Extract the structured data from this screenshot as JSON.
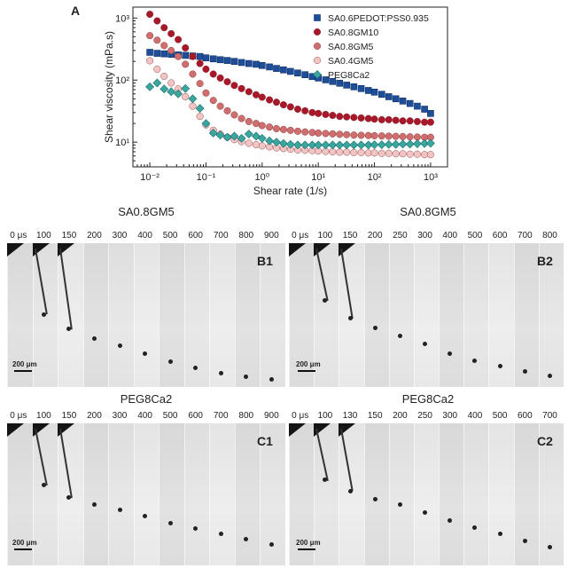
{
  "panel_a": {
    "label": "A"
  },
  "chart_data": {
    "type": "scatter",
    "xlabel": "Shear rate (1/s)",
    "ylabel": "Shear viscosity (mPa.s)",
    "xscale": "log",
    "yscale": "log",
    "xlim": [
      0.005,
      2000
    ],
    "ylim": [
      4,
      1500
    ],
    "x_ticks": [
      "10⁻²",
      "10⁻¹",
      "10⁰",
      "10¹",
      "10²",
      "10³"
    ],
    "y_ticks": [
      "10¹",
      "10²",
      "10³"
    ],
    "legend_position": "top-right",
    "x": [
      0.01,
      0.0135,
      0.018,
      0.024,
      0.032,
      0.043,
      0.058,
      0.078,
      0.1,
      0.135,
      0.18,
      0.24,
      0.32,
      0.43,
      0.58,
      0.78,
      1,
      1.35,
      1.8,
      2.4,
      3.2,
      4.3,
      5.8,
      7.8,
      10,
      13.5,
      18,
      24,
      32,
      43,
      58,
      78,
      100,
      135,
      180,
      240,
      320,
      430,
      580,
      780,
      1000
    ],
    "series": [
      {
        "name": "SA0.6PEDOT:PSS0.935",
        "marker": "square",
        "color": "#1f4e99",
        "values": [
          280,
          270,
          265,
          260,
          255,
          250,
          245,
          240,
          228,
          220,
          213,
          207,
          200,
          192,
          185,
          180,
          172,
          163,
          154,
          146,
          138,
          130,
          122,
          114,
          108,
          101,
          95,
          89,
          83,
          78,
          73,
          68,
          64,
          59,
          54,
          50,
          46,
          42,
          38,
          34,
          29
        ]
      },
      {
        "name": "SA0.8GM10",
        "marker": "circle",
        "color": "#a8182a",
        "values": [
          1150,
          900,
          700,
          560,
          450,
          330,
          240,
          185,
          150,
          125,
          108,
          94,
          82,
          73,
          65,
          58,
          53,
          48,
          44,
          40,
          37,
          34,
          32,
          30,
          29,
          28,
          27,
          26,
          25.5,
          25,
          24.5,
          24,
          23.5,
          23,
          23,
          22.5,
          22,
          22,
          21.5,
          21,
          21
        ]
      },
      {
        "name": "SA0.8GM5",
        "marker": "circle",
        "color": "#cf6e6e",
        "values": [
          520,
          440,
          360,
          300,
          240,
          180,
          125,
          88,
          62,
          47,
          38,
          32,
          27.5,
          24,
          21.5,
          20,
          18.5,
          17.5,
          16.5,
          16,
          15.5,
          15,
          14.6,
          14.3,
          14,
          13.8,
          13.6,
          13.4,
          13.2,
          13,
          12.9,
          12.8,
          12.7,
          12.6,
          12.5,
          12.4,
          12.3,
          12.2,
          12.1,
          12,
          12
        ]
      },
      {
        "name": "SA0.4GM5",
        "marker": "circle",
        "color": "#f3c4c4",
        "values": [
          205,
          150,
          115,
          90,
          72,
          54,
          38,
          26,
          19,
          15.5,
          13.5,
          12,
          11,
          10.2,
          9.6,
          9.1,
          8.7,
          8.4,
          8.1,
          7.9,
          7.7,
          7.5,
          7.4,
          7.3,
          7.2,
          7.1,
          7,
          6.9,
          6.9,
          6.8,
          6.8,
          6.7,
          6.7,
          6.6,
          6.6,
          6.5,
          6.5,
          6.4,
          6.4,
          6.3,
          6.3
        ]
      },
      {
        "name": "PEG8Ca2",
        "marker": "diamond",
        "color": "#3aa6a0",
        "values": [
          78,
          90,
          72,
          65,
          60,
          73,
          50,
          35,
          20,
          14,
          13,
          12,
          12.5,
          11.5,
          13.5,
          12.5,
          11.5,
          10.5,
          10,
          9.5,
          9.2,
          9,
          9,
          9,
          9,
          9,
          9,
          9,
          9,
          9,
          9,
          9,
          9.1,
          9.1,
          9.2,
          9.2,
          9.3,
          9.3,
          9.4,
          9.5,
          9.6
        ]
      }
    ]
  },
  "sequences": {
    "scale_bar": "200 μm",
    "b1": {
      "title": "SA0.8GM5",
      "label": "B1",
      "times": [
        "0 μs",
        "100",
        "150",
        "200",
        "300",
        "400",
        "500",
        "600",
        "700",
        "800",
        "900"
      ],
      "drop_y": [
        0.52,
        0.63,
        0.7,
        0.75,
        0.81,
        0.87,
        0.91,
        0.95,
        0.98,
        1.0
      ]
    },
    "b2": {
      "title": "SA0.8GM5",
      "label": "B2",
      "times": [
        "0 μs",
        "100",
        "150",
        "200",
        "250",
        "300",
        "400",
        "500",
        "600",
        "700",
        "800"
      ],
      "drop_y": [
        0.42,
        0.55,
        0.62,
        0.68,
        0.74,
        0.81,
        0.86,
        0.9,
        0.94,
        0.97
      ]
    },
    "c1": {
      "title": "PEG8Ca2",
      "label": "C1",
      "times": [
        "0 μs",
        "100",
        "150",
        "200",
        "300",
        "400",
        "500",
        "600",
        "700",
        "800",
        "900"
      ],
      "drop_y": [
        0.46,
        0.55,
        0.6,
        0.64,
        0.69,
        0.74,
        0.78,
        0.82,
        0.86,
        0.9
      ]
    },
    "c2": {
      "title": "PEG8Ca2",
      "label": "C2",
      "times": [
        "0 μs",
        "100",
        "130",
        "150",
        "200",
        "250",
        "300",
        "400",
        "500",
        "600",
        "700"
      ],
      "drop_y": [
        0.42,
        0.5,
        0.56,
        0.6,
        0.66,
        0.72,
        0.77,
        0.82,
        0.87,
        0.92
      ]
    }
  }
}
